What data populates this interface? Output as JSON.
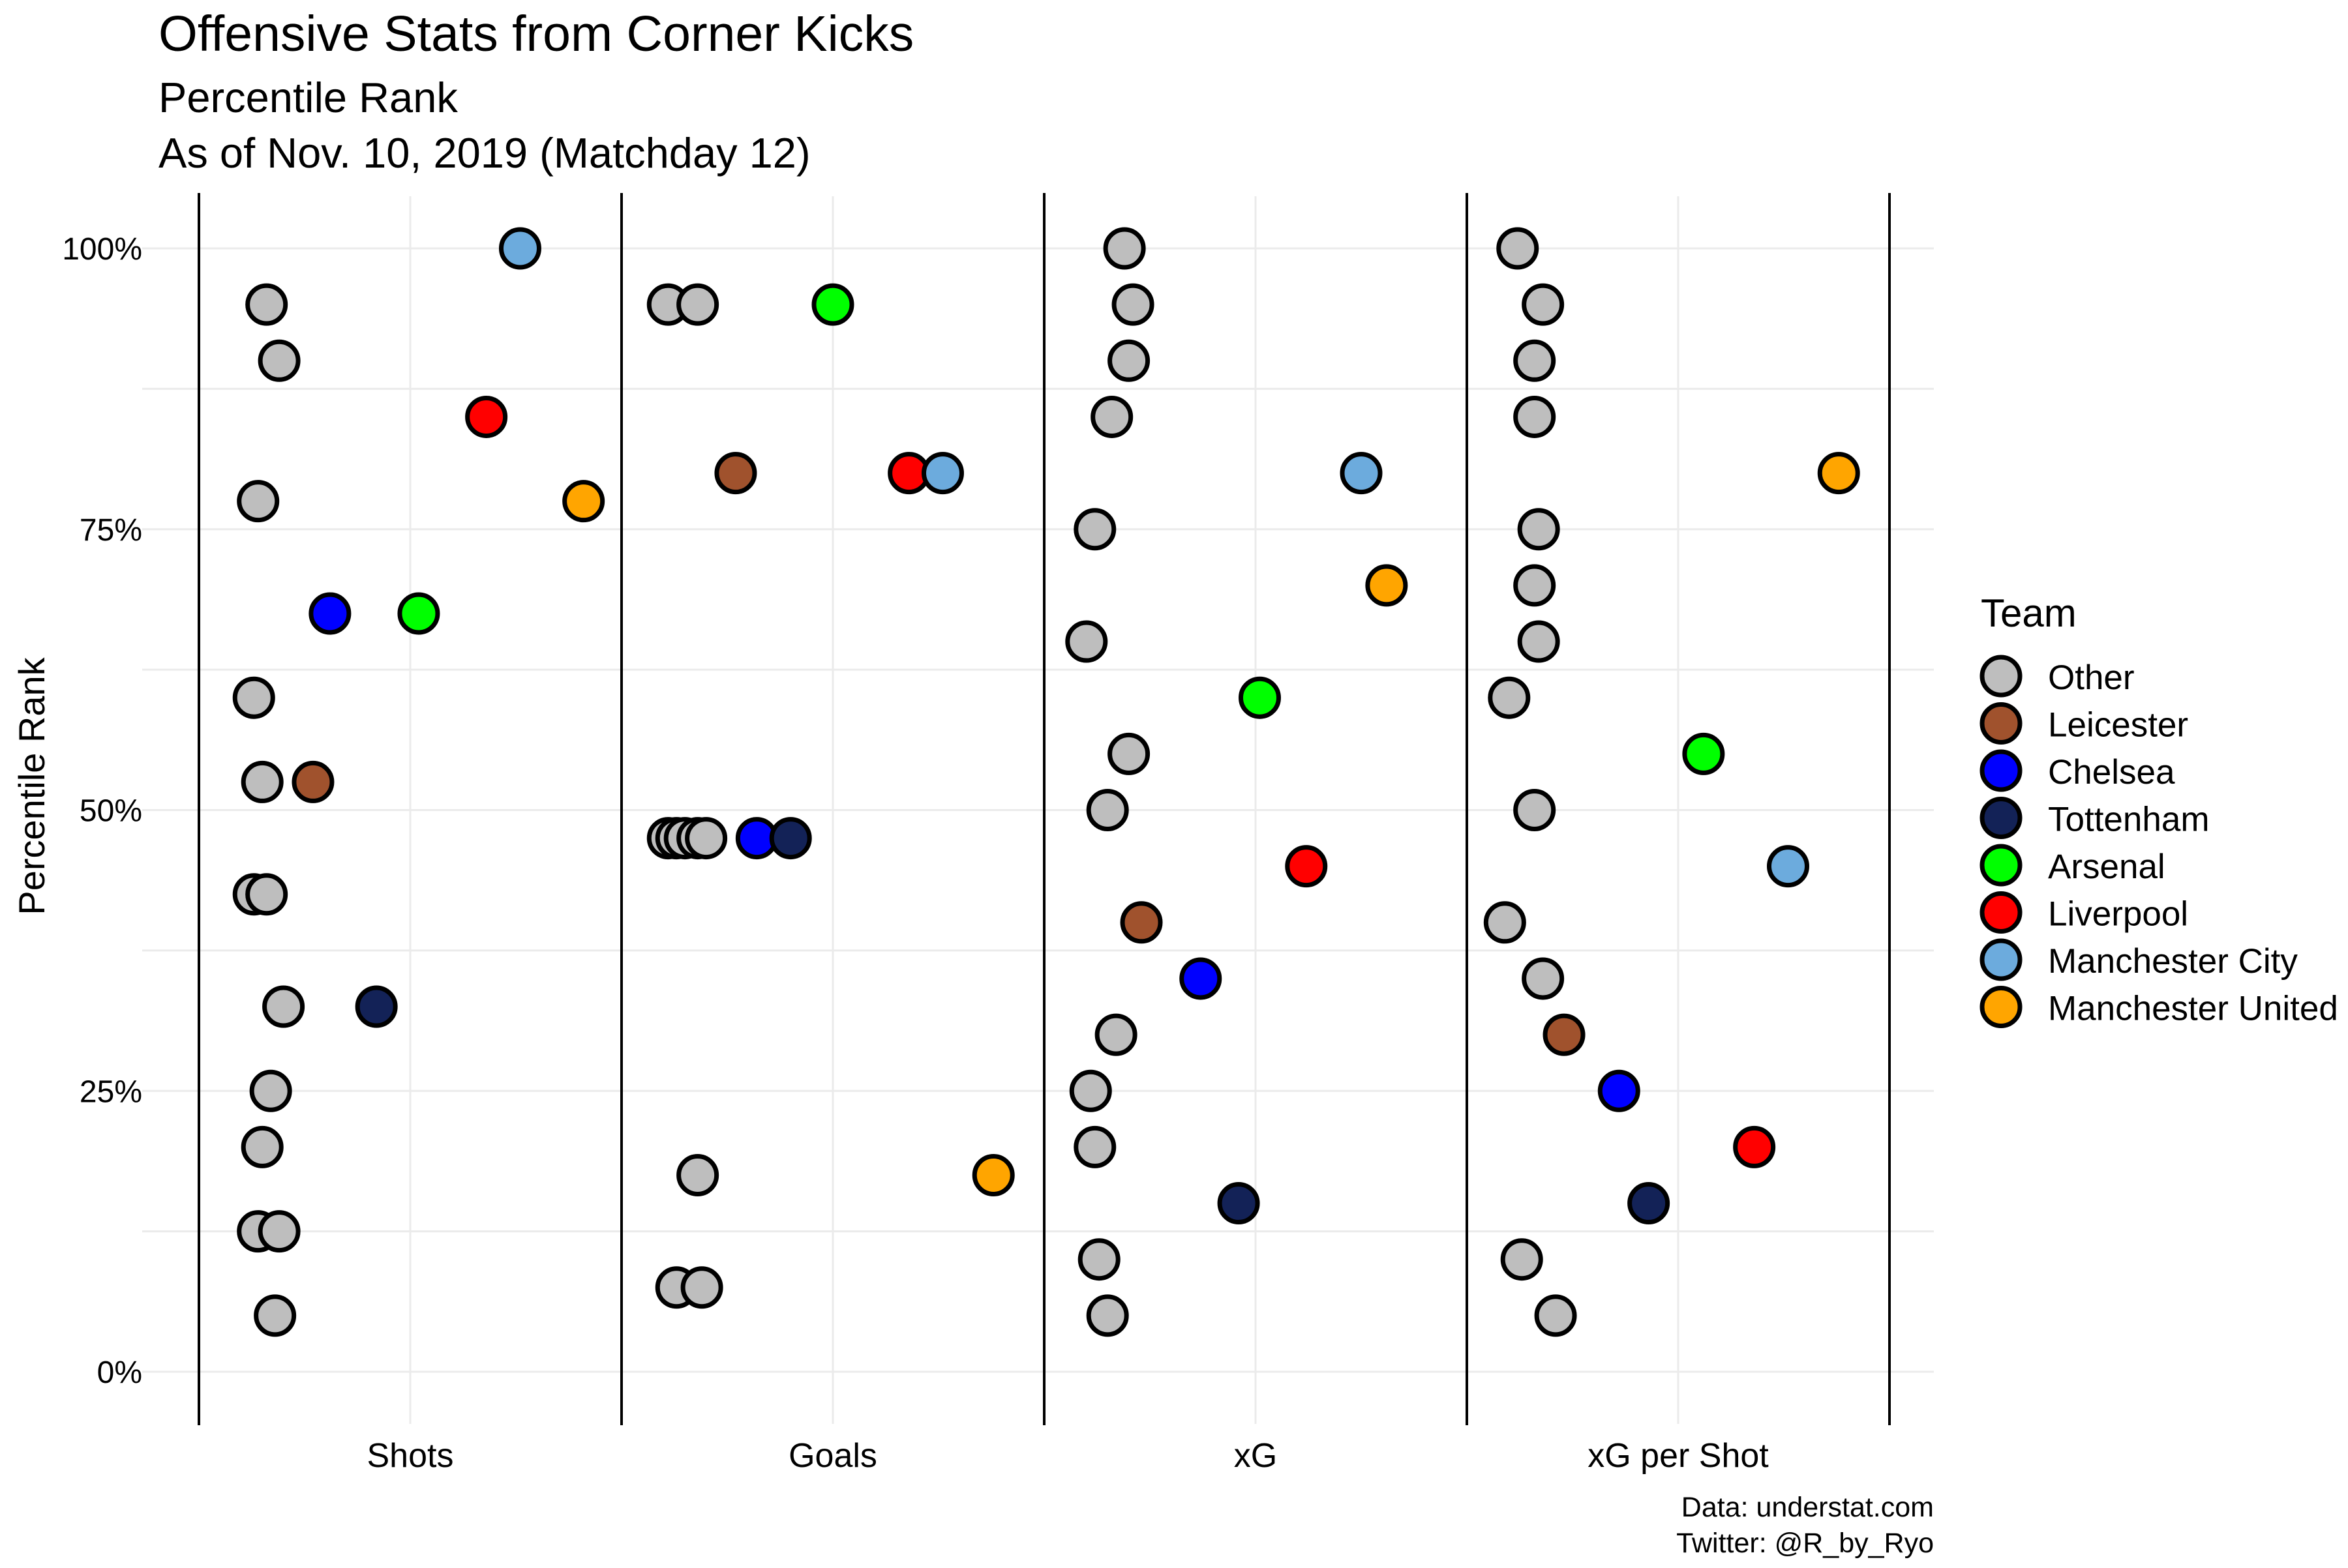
{
  "chart_data": {
    "type": "scatter",
    "title": "Offensive Stats from Corner Kicks",
    "subtitle_lines": [
      "Percentile Rank",
      "As of Nov. 10, 2019 (Matchday 12)"
    ],
    "xlabel": "",
    "ylabel": "Percentile Rank",
    "ylim": [
      0,
      1
    ],
    "y_ticks": [
      {
        "value": 0,
        "label": "0%"
      },
      {
        "value": 0.25,
        "label": "25%"
      },
      {
        "value": 0.5,
        "label": "50%"
      },
      {
        "value": 0.75,
        "label": "75%"
      },
      {
        "value": 1.0,
        "label": "100%"
      }
    ],
    "categories": [
      "Shots",
      "Goals",
      "xG",
      "xG per Shot"
    ],
    "grid": true,
    "legend": {
      "title": "Team",
      "placement": "right",
      "entries": [
        {
          "name": "Other",
          "color": "#BEBEBE"
        },
        {
          "name": "Leicester",
          "color": "#A0522D"
        },
        {
          "name": "Chelsea",
          "color": "#0000FF"
        },
        {
          "name": "Tottenham",
          "color": "#132257"
        },
        {
          "name": "Arsenal",
          "color": "#00FF00"
        },
        {
          "name": "Liverpool",
          "color": "#FF0000"
        },
        {
          "name": "Manchester City",
          "color": "#6CABDD"
        },
        {
          "name": "Manchester United",
          "color": "#FFA500"
        }
      ]
    },
    "series": [
      {
        "category": "Shots",
        "points": [
          {
            "team": "Manchester City",
            "y": 1.0,
            "offset": 0.26
          },
          {
            "team": "Other",
            "y": 0.95,
            "offset": -0.34
          },
          {
            "team": "Other",
            "y": 0.9,
            "offset": -0.31
          },
          {
            "team": "Liverpool",
            "y": 0.85,
            "offset": 0.18
          },
          {
            "team": "Other",
            "y": 0.775,
            "offset": -0.36
          },
          {
            "team": "Manchester United",
            "y": 0.775,
            "offset": 0.41
          },
          {
            "team": "Chelsea",
            "y": 0.675,
            "offset": -0.19
          },
          {
            "team": "Arsenal",
            "y": 0.675,
            "offset": 0.02
          },
          {
            "team": "Other",
            "y": 0.6,
            "offset": -0.37
          },
          {
            "team": "Other",
            "y": 0.525,
            "offset": -0.35
          },
          {
            "team": "Leicester",
            "y": 0.525,
            "offset": -0.23
          },
          {
            "team": "Other",
            "y": 0.425,
            "offset": -0.37
          },
          {
            "team": "Other",
            "y": 0.425,
            "offset": -0.34
          },
          {
            "team": "Other",
            "y": 0.325,
            "offset": -0.3
          },
          {
            "team": "Tottenham",
            "y": 0.325,
            "offset": -0.08
          },
          {
            "team": "Other",
            "y": 0.25,
            "offset": -0.33
          },
          {
            "team": "Other",
            "y": 0.2,
            "offset": -0.35
          },
          {
            "team": "Other",
            "y": 0.125,
            "offset": -0.36
          },
          {
            "team": "Other",
            "y": 0.125,
            "offset": -0.31
          },
          {
            "team": "Other",
            "y": 0.05,
            "offset": -0.32
          }
        ]
      },
      {
        "category": "Goals",
        "points": [
          {
            "team": "Other",
            "y": 0.95,
            "offset": -0.39
          },
          {
            "team": "Other",
            "y": 0.95,
            "offset": -0.32
          },
          {
            "team": "Arsenal",
            "y": 0.95,
            "offset": 0.0
          },
          {
            "team": "Leicester",
            "y": 0.8,
            "offset": -0.23
          },
          {
            "team": "Liverpool",
            "y": 0.8,
            "offset": 0.18
          },
          {
            "team": "Manchester City",
            "y": 0.8,
            "offset": 0.26
          },
          {
            "team": "Other",
            "y": 0.475,
            "offset": -0.39
          },
          {
            "team": "Other",
            "y": 0.475,
            "offset": -0.37
          },
          {
            "team": "Other",
            "y": 0.475,
            "offset": -0.35
          },
          {
            "team": "Other",
            "y": 0.475,
            "offset": -0.32
          },
          {
            "team": "Other",
            "y": 0.475,
            "offset": -0.3
          },
          {
            "team": "Chelsea",
            "y": 0.475,
            "offset": -0.18
          },
          {
            "team": "Tottenham",
            "y": 0.475,
            "offset": -0.1
          },
          {
            "team": "Other",
            "y": 0.175,
            "offset": -0.32
          },
          {
            "team": "Manchester United",
            "y": 0.175,
            "offset": 0.38
          },
          {
            "team": "Other",
            "y": 0.075,
            "offset": -0.37
          },
          {
            "team": "Other",
            "y": 0.075,
            "offset": -0.31
          }
        ]
      },
      {
        "category": "xG",
        "points": [
          {
            "team": "Other",
            "y": 1.0,
            "offset": -0.31
          },
          {
            "team": "Other",
            "y": 0.95,
            "offset": -0.29
          },
          {
            "team": "Other",
            "y": 0.9,
            "offset": -0.3
          },
          {
            "team": "Other",
            "y": 0.85,
            "offset": -0.34
          },
          {
            "team": "Manchester City",
            "y": 0.8,
            "offset": 0.25
          },
          {
            "team": "Other",
            "y": 0.75,
            "offset": -0.38
          },
          {
            "team": "Manchester United",
            "y": 0.7,
            "offset": 0.31
          },
          {
            "team": "Other",
            "y": 0.65,
            "offset": -0.4
          },
          {
            "team": "Arsenal",
            "y": 0.6,
            "offset": 0.01
          },
          {
            "team": "Other",
            "y": 0.55,
            "offset": -0.3
          },
          {
            "team": "Other",
            "y": 0.5,
            "offset": -0.35
          },
          {
            "team": "Liverpool",
            "y": 0.45,
            "offset": 0.12
          },
          {
            "team": "Leicester",
            "y": 0.4,
            "offset": -0.27
          },
          {
            "team": "Chelsea",
            "y": 0.35,
            "offset": -0.13
          },
          {
            "team": "Other",
            "y": 0.3,
            "offset": -0.33
          },
          {
            "team": "Other",
            "y": 0.25,
            "offset": -0.39
          },
          {
            "team": "Other",
            "y": 0.2,
            "offset": -0.38
          },
          {
            "team": "Tottenham",
            "y": 0.15,
            "offset": -0.04
          },
          {
            "team": "Other",
            "y": 0.1,
            "offset": -0.37
          },
          {
            "team": "Other",
            "y": 0.05,
            "offset": -0.35
          }
        ]
      },
      {
        "category": "xG per Shot",
        "points": [
          {
            "team": "Other",
            "y": 1.0,
            "offset": -0.38
          },
          {
            "team": "Other",
            "y": 0.95,
            "offset": -0.32
          },
          {
            "team": "Other",
            "y": 0.9,
            "offset": -0.34
          },
          {
            "team": "Other",
            "y": 0.85,
            "offset": -0.34
          },
          {
            "team": "Manchester United",
            "y": 0.8,
            "offset": 0.38
          },
          {
            "team": "Other",
            "y": 0.75,
            "offset": -0.33
          },
          {
            "team": "Other",
            "y": 0.7,
            "offset": -0.34
          },
          {
            "team": "Other",
            "y": 0.65,
            "offset": -0.33
          },
          {
            "team": "Other",
            "y": 0.6,
            "offset": -0.4
          },
          {
            "team": "Arsenal",
            "y": 0.55,
            "offset": 0.06
          },
          {
            "team": "Other",
            "y": 0.5,
            "offset": -0.34
          },
          {
            "team": "Manchester City",
            "y": 0.45,
            "offset": 0.26
          },
          {
            "team": "Other",
            "y": 0.4,
            "offset": -0.41
          },
          {
            "team": "Other",
            "y": 0.35,
            "offset": -0.32
          },
          {
            "team": "Leicester",
            "y": 0.3,
            "offset": -0.27
          },
          {
            "team": "Chelsea",
            "y": 0.25,
            "offset": -0.14
          },
          {
            "team": "Liverpool",
            "y": 0.2,
            "offset": 0.18
          },
          {
            "team": "Tottenham",
            "y": 0.15,
            "offset": -0.07
          },
          {
            "team": "Other",
            "y": 0.1,
            "offset": -0.37
          },
          {
            "team": "Other",
            "y": 0.05,
            "offset": -0.29
          }
        ]
      }
    ],
    "caption_lines": [
      "Data: understat.com",
      "Twitter: @R_by_Ryo"
    ]
  }
}
